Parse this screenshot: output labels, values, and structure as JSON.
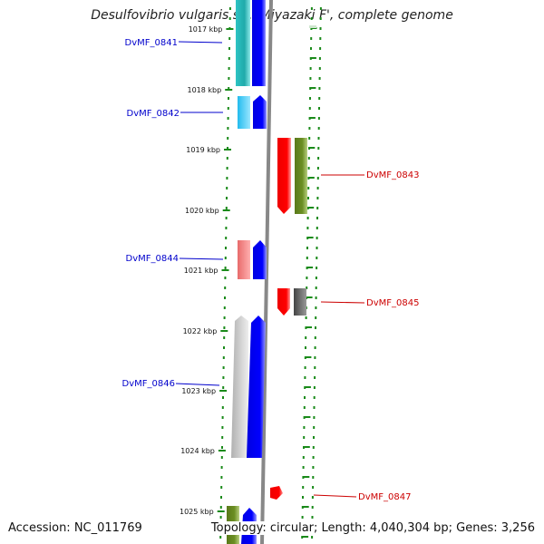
{
  "title": "Desulfovibrio vulgaris str. 'Miyazaki F', complete genome",
  "footer": {
    "accession": "Accession: NC_011769",
    "summary": "Topology: circular; Length: 4,040,304 bp; Genes: 3,256"
  },
  "ticks": [
    "1017 kbp",
    "1018 kbp",
    "1019 kbp",
    "1020 kbp",
    "1021 kbp",
    "1022 kbp",
    "1023 kbp",
    "1024 kbp",
    "1025 kbp"
  ],
  "genes": [
    {
      "id": "DvMF_0841",
      "strand": "reverse",
      "color": "#0000cc",
      "cog_color": "#2ec4c4"
    },
    {
      "id": "DvMF_0842",
      "strand": "reverse",
      "color": "#0000cc",
      "cog_color": "#33ccee"
    },
    {
      "id": "DvMF_0843",
      "strand": "forward",
      "color": "#cc0000",
      "cog_color": "#6b8e23"
    },
    {
      "id": "DvMF_0844",
      "strand": "reverse",
      "color": "#0000cc",
      "cog_color": "#f08080"
    },
    {
      "id": "DvMF_0845",
      "strand": "forward",
      "color": "#cc0000",
      "cog_color": "#555555"
    },
    {
      "id": "DvMF_0846",
      "strand": "reverse",
      "color": "#0000cc",
      "cog_color": "#c8c8c8"
    },
    {
      "id": "DvMF_0847",
      "strand": "forward",
      "color": "#cc0000",
      "cog_color": ""
    }
  ]
}
